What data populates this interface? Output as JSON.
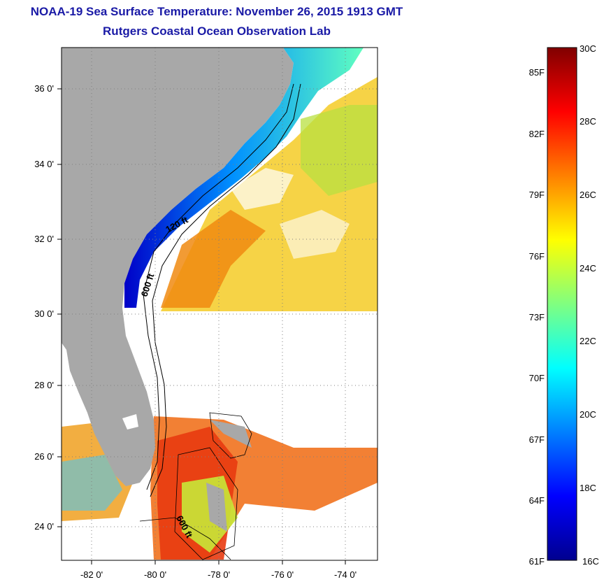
{
  "title": {
    "line1": "NOAA-19 Sea Surface Temperature:  November 26, 2015 1913 GMT",
    "line2": "Rutgers Coastal Ocean Observation Lab"
  },
  "map": {
    "lat_ticks": [
      "36 0'",
      "34 0'",
      "32 0'",
      "30 0'",
      "28 0'",
      "26 0'",
      "24 0'"
    ],
    "lon_ticks": [
      "-82 0'",
      "-80 0'",
      "-78 0'",
      "-76 0'",
      "-74 0'"
    ],
    "contour_labels": [
      "120 ft",
      "600 ft",
      "600 ft"
    ],
    "colors": {
      "land": "#a8a8a8",
      "missing_data": "#ffffff",
      "graticule": "#808080"
    }
  },
  "colorbar": {
    "celsius_labels": [
      "30C",
      "28C",
      "26C",
      "24C",
      "22C",
      "20C",
      "18C",
      "16C"
    ],
    "fahrenheit_labels": [
      "85F",
      "82F",
      "79F",
      "76F",
      "73F",
      "70F",
      "67F",
      "64F",
      "61F"
    ],
    "min_celsius": 16,
    "max_celsius": 30,
    "colors": [
      "#00008f",
      "#0000ff",
      "#0080ff",
      "#00ffff",
      "#80ff80",
      "#ffff00",
      "#ff8000",
      "#ff0000",
      "#800000"
    ]
  }
}
